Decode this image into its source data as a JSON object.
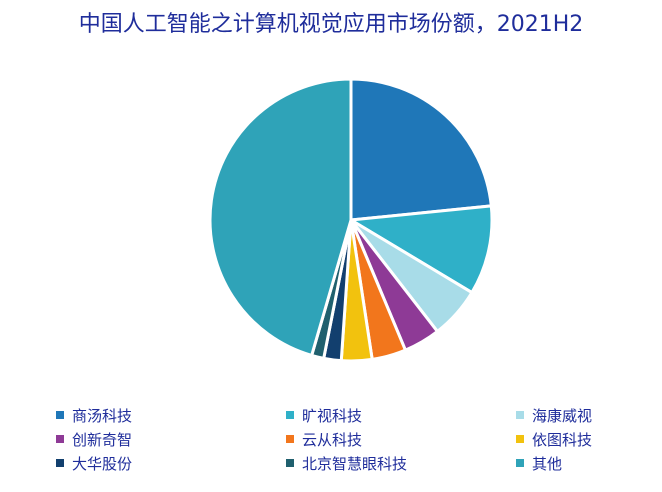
{
  "chart_data": {
    "type": "pie",
    "title": "中国人工智能之计算机视觉应用市场份额，2021H2",
    "categories": [
      "商汤科技",
      "旷视科技",
      "海康威视",
      "创新奇智",
      "云从科技",
      "依图科技",
      "大华股份",
      "北京智慧眼科技",
      "其他"
    ],
    "values": [
      23.4,
      10.2,
      5.9,
      4.2,
      3.9,
      3.5,
      2.0,
      1.4,
      45.5
    ],
    "colors": [
      "#1f77b8",
      "#2fb0c8",
      "#a8dce8",
      "#8e3a96",
      "#f2761c",
      "#f2c20e",
      "#123f6e",
      "#20606e",
      "#2fa3b8"
    ],
    "legend": "bottom"
  }
}
